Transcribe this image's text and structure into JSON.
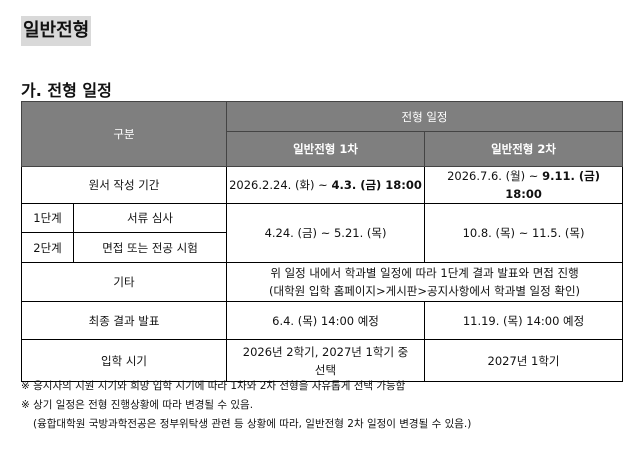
{
  "title": "일반전형",
  "section_title": "가. 전형 일정",
  "table": {
    "header": {
      "category": "구분",
      "schedule": "전형 일정",
      "round1": "일반전형 1차",
      "round2": "일반전형 2차"
    },
    "rows": {
      "application": {
        "label": "원서 작성 기간",
        "r1_start": "2026.2.24. (화) ~ ",
        "r1_end": "4.3. (금) 18:00",
        "r2_start": "2026.7.6. (월) ~ ",
        "r2_end": "9.11. (금) 18:00"
      },
      "stage1": {
        "stage": "1단계",
        "label": "서류 심사"
      },
      "stage2": {
        "stage": "2단계",
        "label": "면접 또는 전공 시험"
      },
      "stages_r1": "4.24. (금) ~ 5.21. (목)",
      "stages_r2": "10.8. (목) ~ 11.5. (목)",
      "etc": {
        "label": "기타",
        "line1": "위 일정 내에서 학과별 일정에 따라 1단계 결과 발표와 면접 진행",
        "line2": "(대학원 입학 홈페이지>게시판>공지사항에서 학과별 일정 확인)"
      },
      "final": {
        "label": "최종 결과 발표",
        "r1": "6.4. (목) 14:00 예정",
        "r2": "11.19. (목) 14:00 예정"
      },
      "admission": {
        "label": "입학 시기",
        "r1": "2026년 2학기, 2027년 1학기 중 선택",
        "r2": "2027년 1학기"
      }
    }
  },
  "notes": [
    "※ 응시자의 지원 시기와 희망 입학 시기에 따라 1차와 2차 전형을 자유롭게 선택 가능함",
    "※ 상기 일정은 전형 진행상황에 따라 변경될 수 있음.",
    "(융합대학원 국방과학전공은 정부위탁생 관련 등 상황에 따라, 일반전형 2차 일정이 변경될 수 있음.)"
  ]
}
